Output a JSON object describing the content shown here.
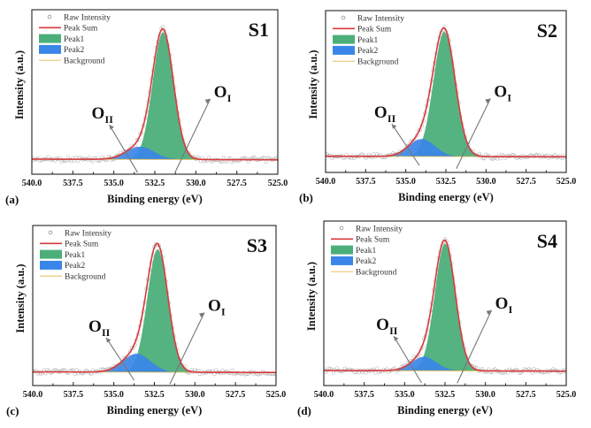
{
  "figure": {
    "description": "O 1s XPS spectra of four samples with peak fitting"
  },
  "legend": {
    "items": [
      {
        "label": "Raw Intensity",
        "kind": "marker",
        "color": "#8a8a8a"
      },
      {
        "label": "Peak Sum",
        "kind": "line",
        "color": "#d9393b"
      },
      {
        "label": "Peak1",
        "kind": "fill",
        "color": "#4caf7a"
      },
      {
        "label": "Peak2",
        "kind": "fill",
        "color": "#3a86e8"
      },
      {
        "label": "Background",
        "kind": "line",
        "color": "#e0b84a"
      }
    ]
  },
  "annotations": {
    "o1_main": "O",
    "o1_sub": "I",
    "o2_main": "O",
    "o2_sub": "II"
  },
  "chart_data": [
    {
      "type": "area",
      "panel": "(a)",
      "title": "S1",
      "xlabel": "Binding energy (eV)",
      "ylabel": "Intensity (a.u.)",
      "xlim": [
        540.0,
        525.0
      ],
      "x_reversed": true,
      "xticks": [
        "540.0",
        "537.5",
        "535.0",
        "532.5",
        "530.0",
        "527.5",
        "525.0"
      ],
      "yticks": [],
      "legend_position": "top-left",
      "series": [
        {
          "name": "Peak1",
          "center_eV": 532.0,
          "height": 1.0,
          "fwhm_eV": 1.5
        },
        {
          "name": "Peak2",
          "center_eV": 533.4,
          "height": 0.1,
          "fwhm_eV": 2.0
        }
      ],
      "background_level": 0.03
    },
    {
      "type": "area",
      "panel": "(b)",
      "title": "S2",
      "xlabel": "Binding energy (eV)",
      "ylabel": "Intensity (a.u.)",
      "xlim": [
        540.0,
        525.0
      ],
      "x_reversed": true,
      "xticks": [
        "540.0",
        "537.5",
        "535.0",
        "532.5",
        "530.0",
        "527.5",
        "525.0"
      ],
      "yticks": [],
      "legend_position": "top-left",
      "series": [
        {
          "name": "Peak1",
          "center_eV": 532.6,
          "height": 1.0,
          "fwhm_eV": 1.6
        },
        {
          "name": "Peak2",
          "center_eV": 534.0,
          "height": 0.14,
          "fwhm_eV": 1.9
        }
      ],
      "background_level": 0.04
    },
    {
      "type": "area",
      "panel": "(c)",
      "title": "S3",
      "xlabel": "Binding energy (eV)",
      "ylabel": "Intensity (a.u.)",
      "xlim": [
        540.0,
        525.0
      ],
      "x_reversed": true,
      "xticks": [
        "540.0",
        "537.5",
        "535.0",
        "532.5",
        "530.0",
        "527.5",
        "525.0"
      ],
      "yticks": [],
      "legend_position": "top-left",
      "series": [
        {
          "name": "Peak1",
          "center_eV": 532.3,
          "height": 1.0,
          "fwhm_eV": 1.5
        },
        {
          "name": "Peak2",
          "center_eV": 533.6,
          "height": 0.15,
          "fwhm_eV": 2.0
        }
      ],
      "background_level": 0.02
    },
    {
      "type": "area",
      "panel": "(d)",
      "title": "S4",
      "xlabel": "Binding energy (eV)",
      "ylabel": "Intensity (a.u.)",
      "xlim": [
        540.0,
        525.0
      ],
      "x_reversed": true,
      "xticks": [
        "540.0",
        "537.5",
        "535.0",
        "532.5",
        "530.0",
        "527.5",
        "525.0"
      ],
      "yticks": [],
      "legend_position": "top-left",
      "series": [
        {
          "name": "Peak1",
          "center_eV": 532.5,
          "height": 1.0,
          "fwhm_eV": 1.5
        },
        {
          "name": "Peak2",
          "center_eV": 533.8,
          "height": 0.11,
          "fwhm_eV": 1.8
        }
      ],
      "background_level": 0.03
    }
  ]
}
